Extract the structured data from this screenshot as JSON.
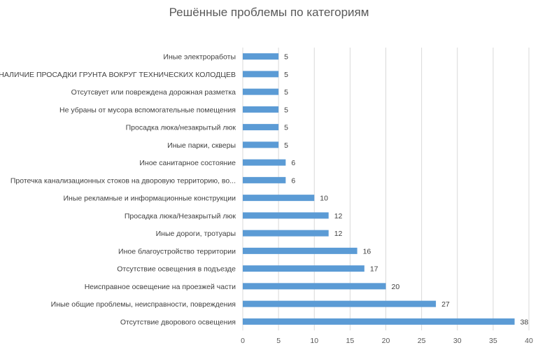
{
  "chart_data": {
    "type": "bar",
    "orientation": "horizontal",
    "title": "Решённые проблемы по категориям",
    "categories": [
      "Иные электроработы",
      "НАЛИЧИЕ ПРОСАДКИ ГРУНТА ВОКРУГ ТЕХНИЧЕСКИХ КОЛОДЦЕВ",
      "Отсутсвует или повреждена дорожная разметка",
      "Не убраны от мусора вспомогательные помещения",
      "Просадка люка/незакрытый люк",
      "Иные парки, скверы",
      "Иное санитарное состояние",
      "Протечка канализационных стоков на дворовую территорию, во...",
      "Иные рекламные и информационные конструкции",
      "Просадка люка/Незакрытый люк",
      "Иные дороги, тротуары",
      "Иное благоустройство территории",
      "Отсутствие освещения в подъезде",
      "Неисправное освещение на проезжей части",
      "Иные общие проблемы, неисправности, повреждения",
      "Отсутствие дворового освещения"
    ],
    "values": [
      5,
      5,
      5,
      5,
      5,
      5,
      6,
      6,
      10,
      12,
      12,
      16,
      17,
      20,
      27,
      38
    ],
    "xlim": [
      0,
      40
    ],
    "xticks": [
      0,
      5,
      10,
      15,
      20,
      25,
      30,
      35,
      40
    ],
    "grid": "vertical",
    "bar_color": "#5b9bd5",
    "grid_color": "#d9d9d9",
    "data_labels": true,
    "legend": "none"
  }
}
